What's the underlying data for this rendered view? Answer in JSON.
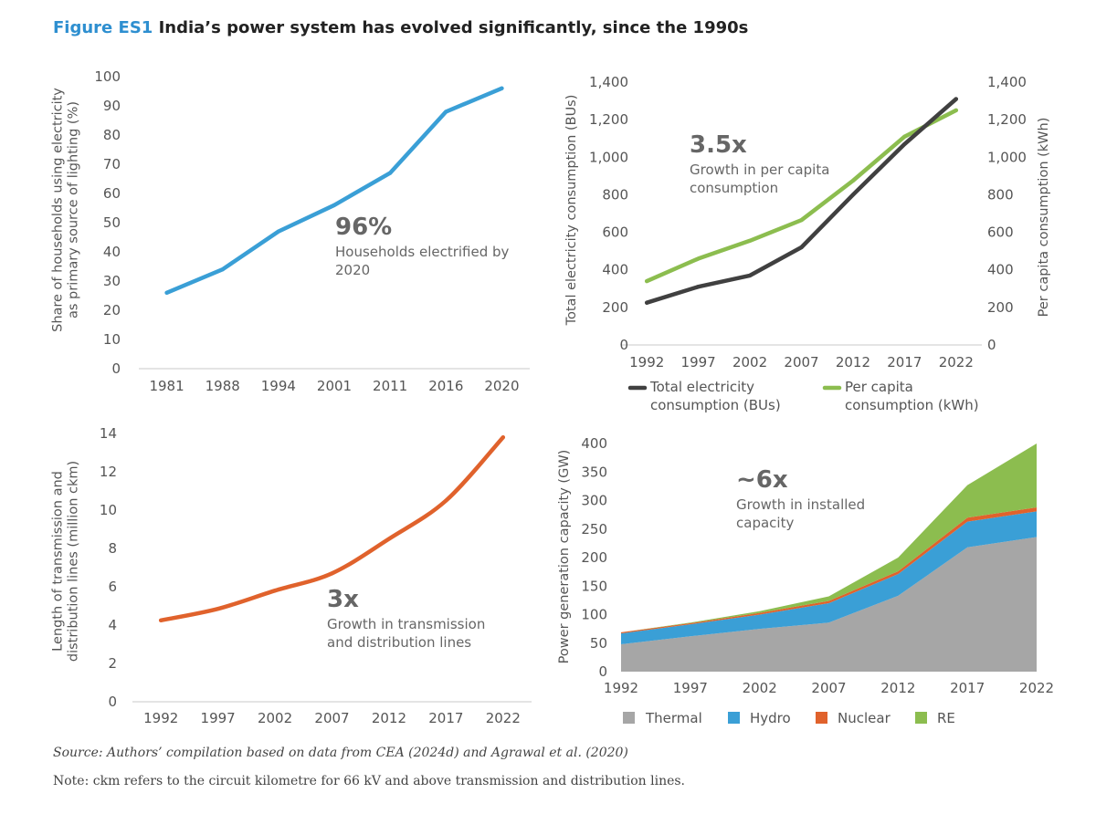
{
  "figure": {
    "label": "Figure ES1",
    "title": "India’s power system has evolved significantly, since the 1990s",
    "source": "Source: Authors’ compilation based on data from CEA (2024d) and Agrawal et al. (2020)",
    "note": "Note: ckm refers to the circuit kilometre for 66 kV and above transmission and distribution lines."
  },
  "colors": {
    "households": "#3a9fd6",
    "total": "#404040",
    "percapita": "#8cbd4f",
    "lines": "#e0622c",
    "thermal": "#a6a6a6",
    "hydro": "#3a9fd6",
    "nuclear": "#e0622c",
    "re": "#8cbd4f"
  },
  "chart_data": [
    {
      "type": "line",
      "categories": [
        "1981",
        "1988",
        "1994",
        "2001",
        "2011",
        "2016",
        "2020"
      ],
      "series": [
        {
          "values": [
            26,
            34,
            47,
            56,
            67,
            88,
            96
          ]
        }
      ],
      "ylabel": [
        "Share of households using electricity",
        "as primary source of lighting (%)"
      ],
      "ylim": [
        0,
        100
      ],
      "yticks": [
        0,
        10,
        20,
        30,
        40,
        50,
        60,
        70,
        80,
        90,
        100
      ],
      "annotation": {
        "big": "96%",
        "lines": [
          "Households electrified by",
          "2020"
        ]
      },
      "grid": false
    },
    {
      "type": "line",
      "categories": [
        "1992",
        "1997",
        "2002",
        "2007",
        "2012",
        "2017",
        "2022"
      ],
      "series": [
        {
          "name": "Total electricity consumption (BUs)",
          "legend_lines": [
            "Total electricity",
            "consumption (BUs)"
          ],
          "axis": "left",
          "values": [
            225,
            310,
            370,
            520,
            800,
            1070,
            1310
          ]
        },
        {
          "name": "Per capita consumption (kWh)",
          "legend_lines": [
            "Per capita",
            "consumption (kWh)"
          ],
          "axis": "right",
          "values": [
            340,
            460,
            555,
            665,
            875,
            1110,
            1250
          ]
        }
      ],
      "ylabel": "Total electricity consumption (BUs)",
      "ylabel_right": "Per capita consumption (kWh)",
      "ylim": [
        0,
        1400
      ],
      "ylim_right": [
        0,
        1400
      ],
      "yticks": [
        "0",
        "200",
        "400",
        "600",
        "800",
        "1,000",
        "1,200",
        "1,400"
      ],
      "annotation": {
        "big": "3.5x",
        "lines": [
          "Growth in per capita",
          "consumption"
        ]
      },
      "legend": "bottom",
      "grid": false
    },
    {
      "type": "line",
      "categories": [
        "1992",
        "1997",
        "2002",
        "2007",
        "2012",
        "2017",
        "2022"
      ],
      "series": [
        {
          "values": [
            4.25,
            4.85,
            5.8,
            6.7,
            8.5,
            10.5,
            13.8
          ]
        }
      ],
      "ylabel": [
        "Length of transmission and",
        "distribution lines (million ckm)"
      ],
      "ylim": [
        0,
        14
      ],
      "yticks": [
        0,
        2,
        4,
        6,
        8,
        10,
        12,
        14
      ],
      "annotation": {
        "big": "3x",
        "lines": [
          "Growth in transmission",
          "and distribution lines"
        ]
      },
      "grid": false
    },
    {
      "type": "area",
      "stacked": true,
      "categories": [
        "1992",
        "1997",
        "2002",
        "2007",
        "2012",
        "2017",
        "2022"
      ],
      "series": [
        {
          "name": "Thermal",
          "values": [
            48,
            62,
            75,
            86,
            133,
            218,
            236
          ]
        },
        {
          "name": "Hydro",
          "values": [
            19,
            21,
            25,
            34,
            38,
            45,
            45
          ]
        },
        {
          "name": "Nuclear",
          "values": [
            2,
            2,
            3,
            4,
            5,
            7,
            7
          ]
        },
        {
          "name": "RE",
          "values": [
            0,
            1,
            3,
            8,
            24,
            57,
            112
          ]
        }
      ],
      "ylabel": "Power generation capacity (GW)",
      "ylim": [
        0,
        400
      ],
      "yticks": [
        0,
        50,
        100,
        150,
        200,
        250,
        300,
        350,
        400
      ],
      "annotation": {
        "big": "~6x",
        "lines": [
          "Growth in installed",
          "capacity"
        ]
      },
      "legend": "bottom",
      "grid": false
    }
  ]
}
